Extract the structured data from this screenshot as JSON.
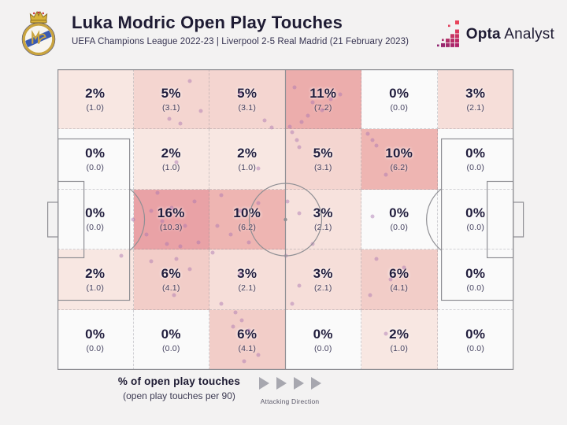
{
  "header": {
    "title": "Luka Modric Open Play Touches",
    "subtitle": "UEFA Champions League 2022-23 | Liverpool 2-5 Real Madrid (21 February 2023)",
    "crest_icon": "real-madrid-crest",
    "brand": {
      "icon": "opta-squares-icon",
      "name_bold": "Opta",
      "name_regular": "Analyst",
      "text_color": "#1e1b33"
    }
  },
  "legend": {
    "title": "% of open play touches",
    "subtitle": "(open play touches per 90)",
    "attacking_direction_label": "Attacking Direction"
  },
  "colors": {
    "background": "#f3f2f2",
    "pitch_line": "#8f8f94",
    "grid_line": "#8c8c96",
    "text_dark": "#1e1b33",
    "touch_dot": "#ab78b2",
    "heat_min": "#fafafa",
    "heat_max": "#e9a2a6"
  },
  "chart_data": {
    "type": "heatmap",
    "title": "Luka Modric Open Play Touches",
    "rows": 5,
    "cols": 6,
    "value_unit": "% of open play touches",
    "secondary_unit": "open play touches per 90",
    "cells": [
      {
        "pct": "2%",
        "per90": "(1.0)",
        "value": 2,
        "color": "#f8e7e2"
      },
      {
        "pct": "5%",
        "per90": "(3.1)",
        "value": 5,
        "color": "#f4d5d0"
      },
      {
        "pct": "5%",
        "per90": "(3.1)",
        "value": 5,
        "color": "#f4d5d0"
      },
      {
        "pct": "11%",
        "per90": "(7.2)",
        "value": 11,
        "color": "#ecadac"
      },
      {
        "pct": "0%",
        "per90": "(0.0)",
        "value": 0,
        "color": "#fafafa"
      },
      {
        "pct": "3%",
        "per90": "(2.1)",
        "value": 3,
        "color": "#f6ded9"
      },
      {
        "pct": "0%",
        "per90": "(0.0)",
        "value": 0,
        "color": "#fafafa"
      },
      {
        "pct": "2%",
        "per90": "(1.0)",
        "value": 2,
        "color": "#f8e7e2"
      },
      {
        "pct": "2%",
        "per90": "(1.0)",
        "value": 2,
        "color": "#f8e7e2"
      },
      {
        "pct": "5%",
        "per90": "(3.1)",
        "value": 5,
        "color": "#f4d5d0"
      },
      {
        "pct": "10%",
        "per90": "(6.2)",
        "value": 10,
        "color": "#eeb5b2"
      },
      {
        "pct": "0%",
        "per90": "(0.0)",
        "value": 0,
        "color": "#fafafa"
      },
      {
        "pct": "0%",
        "per90": "(0.0)",
        "value": 0,
        "color": "#fafafa"
      },
      {
        "pct": "16%",
        "per90": "(10.3)",
        "value": 16,
        "color": "#e9a2a6"
      },
      {
        "pct": "10%",
        "per90": "(6.2)",
        "value": 10,
        "color": "#eeb5b2"
      },
      {
        "pct": "3%",
        "per90": "(2.1)",
        "value": 3,
        "color": "#f7e2dd"
      },
      {
        "pct": "0%",
        "per90": "(0.0)",
        "value": 0,
        "color": "#fafafa"
      },
      {
        "pct": "0%",
        "per90": "(0.0)",
        "value": 0,
        "color": "#fafafa"
      },
      {
        "pct": "2%",
        "per90": "(1.0)",
        "value": 2,
        "color": "#f8e7e2"
      },
      {
        "pct": "6%",
        "per90": "(4.1)",
        "value": 6,
        "color": "#f2cdc8"
      },
      {
        "pct": "3%",
        "per90": "(2.1)",
        "value": 3,
        "color": "#f6ded9"
      },
      {
        "pct": "3%",
        "per90": "(2.1)",
        "value": 3,
        "color": "#f6ded9"
      },
      {
        "pct": "6%",
        "per90": "(4.1)",
        "value": 6,
        "color": "#f2cdc8"
      },
      {
        "pct": "0%",
        "per90": "(0.0)",
        "value": 0,
        "color": "#fafafa"
      },
      {
        "pct": "0%",
        "per90": "(0.0)",
        "value": 0,
        "color": "#fafafa"
      },
      {
        "pct": "0%",
        "per90": "(0.0)",
        "value": 0,
        "color": "#fafafa"
      },
      {
        "pct": "6%",
        "per90": "(4.1)",
        "value": 6,
        "color": "#f2cdc8"
      },
      {
        "pct": "0%",
        "per90": "(0.0)",
        "value": 0,
        "color": "#fafafa"
      },
      {
        "pct": "2%",
        "per90": "(1.0)",
        "value": 2,
        "color": "#f8e7e2"
      },
      {
        "pct": "0%",
        "per90": "(0.0)",
        "value": 0,
        "color": "#fafafa"
      }
    ],
    "touch_points": [
      [
        24.5,
        16.5
      ],
      [
        29,
        4
      ],
      [
        31.5,
        14
      ],
      [
        27,
        18
      ],
      [
        40,
        8
      ],
      [
        45.5,
        17
      ],
      [
        47,
        19.5
      ],
      [
        52,
        6
      ],
      [
        56,
        11
      ],
      [
        58,
        13.5
      ],
      [
        55,
        15.5
      ],
      [
        60,
        10
      ],
      [
        53.5,
        17.5
      ],
      [
        62,
        8.5
      ],
      [
        51,
        19
      ],
      [
        26,
        31
      ],
      [
        44,
        33
      ],
      [
        51.5,
        21
      ],
      [
        52.5,
        23.5
      ],
      [
        53,
        26
      ],
      [
        68,
        21.5
      ],
      [
        70,
        25.5
      ],
      [
        69,
        23.5
      ],
      [
        72,
        35
      ],
      [
        16.5,
        50
      ],
      [
        22,
        41
      ],
      [
        25,
        46
      ],
      [
        28,
        52
      ],
      [
        24,
        58
      ],
      [
        30,
        44
      ],
      [
        19.5,
        55
      ],
      [
        27,
        59
      ],
      [
        23,
        50.5
      ],
      [
        31,
        57.5
      ],
      [
        20.5,
        47
      ],
      [
        36,
        42
      ],
      [
        40,
        47
      ],
      [
        38,
        55
      ],
      [
        42,
        57.5
      ],
      [
        35,
        52
      ],
      [
        44,
        44.5
      ],
      [
        53,
        48
      ],
      [
        50.5,
        44
      ],
      [
        56,
        58
      ],
      [
        69,
        49
      ],
      [
        14,
        62
      ],
      [
        20.5,
        64
      ],
      [
        26,
        63
      ],
      [
        29,
        66.5
      ],
      [
        25.5,
        75
      ],
      [
        34,
        61
      ],
      [
        40,
        68
      ],
      [
        36,
        78
      ],
      [
        50,
        62
      ],
      [
        53,
        72
      ],
      [
        51.5,
        78
      ],
      [
        70,
        63
      ],
      [
        73,
        70
      ],
      [
        68.5,
        75
      ],
      [
        76,
        66
      ],
      [
        39,
        81
      ],
      [
        40.5,
        83.5
      ],
      [
        42,
        87
      ],
      [
        38.5,
        85.5
      ],
      [
        44,
        95
      ],
      [
        41,
        97
      ],
      [
        72,
        88
      ]
    ]
  }
}
